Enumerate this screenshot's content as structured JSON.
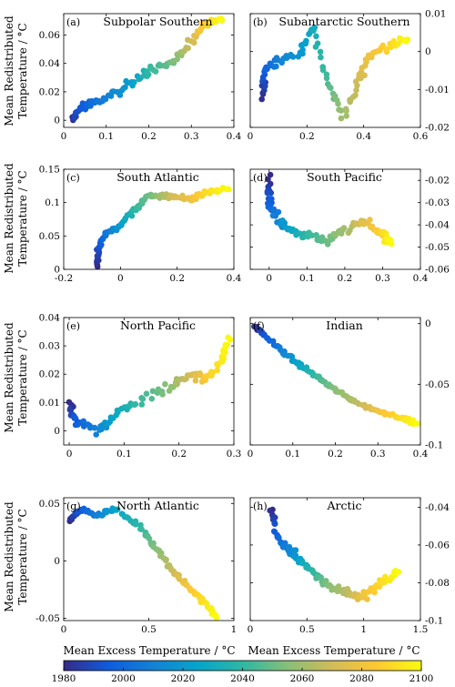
{
  "figure": {
    "ylabel_line1": "Mean Redistributed",
    "ylabel_line2": "Temperature / °C",
    "xlabel": "Mean Excess Temperature / °C",
    "colorbar": {
      "ticks": [
        1980,
        2000,
        2020,
        2040,
        2060,
        2080,
        2100
      ],
      "labels": [
        "1980",
        "2000",
        "2020",
        "2040",
        "2060",
        "2080",
        "2100"
      ],
      "colormap": "parula",
      "colors": [
        "#352a87",
        "#0f5cdd",
        "#1481d6",
        "#06a4ca",
        "#2eb7a4",
        "#87bf77",
        "#d1bb59",
        "#fec832",
        "#f9fb0e"
      ]
    }
  },
  "chart_data": [
    {
      "type": "scatter",
      "letter": "(a)",
      "title": "Subpolar Southern",
      "xlim": [
        0,
        0.4
      ],
      "ylim": [
        -0.005,
        0.075
      ],
      "yaxis": "left",
      "xticks": [
        0,
        0.1,
        0.2,
        0.3,
        0.4
      ],
      "xtick_labels": [
        "0",
        "0.1",
        "0.2",
        "0.3",
        "0.4"
      ],
      "yticks": [
        0,
        0.02,
        0.04,
        0.06
      ],
      "ytick_labels": [
        "0",
        "0.02",
        "0.04",
        "0.06"
      ],
      "anchors": [
        [
          0.02,
          0.0,
          1980
        ],
        [
          0.03,
          0.005,
          1990
        ],
        [
          0.06,
          0.012,
          2000
        ],
        [
          0.1,
          0.015,
          2010
        ],
        [
          0.15,
          0.025,
          2020
        ],
        [
          0.2,
          0.035,
          2040
        ],
        [
          0.25,
          0.04,
          2050
        ],
        [
          0.3,
          0.055,
          2070
        ],
        [
          0.33,
          0.065,
          2085
        ],
        [
          0.37,
          0.072,
          2100
        ]
      ],
      "noise": [
        0.008,
        0.004
      ]
    },
    {
      "type": "scatter",
      "letter": "(b)",
      "title": "Subantarctic Southern",
      "xlim": [
        0,
        0.6
      ],
      "ylim": [
        -0.02,
        0.01
      ],
      "yaxis": "right",
      "xticks": [
        0,
        0.2,
        0.4,
        0.6
      ],
      "xtick_labels": [
        "0",
        "0.2",
        "0.4",
        "0.6"
      ],
      "yticks": [
        -0.02,
        -0.01,
        0,
        0.01
      ],
      "ytick_labels": [
        "-0.02",
        "-0.01",
        "0",
        "0.01"
      ],
      "anchors": [
        [
          0.04,
          -0.012,
          1980
        ],
        [
          0.05,
          -0.005,
          1995
        ],
        [
          0.1,
          -0.002,
          2010
        ],
        [
          0.18,
          0.0,
          2020
        ],
        [
          0.22,
          0.007,
          2030
        ],
        [
          0.27,
          -0.008,
          2045
        ],
        [
          0.33,
          -0.017,
          2060
        ],
        [
          0.38,
          -0.008,
          2070
        ],
        [
          0.42,
          -0.001,
          2080
        ],
        [
          0.5,
          0.002,
          2090
        ],
        [
          0.55,
          0.003,
          2100
        ]
      ],
      "noise": [
        0.012,
        0.0015
      ]
    },
    {
      "type": "scatter",
      "letter": "(c)",
      "title": "South Atlantic",
      "xlim": [
        -0.2,
        0.4
      ],
      "ylim": [
        0,
        0.15
      ],
      "yaxis": "left",
      "xticks": [
        -0.2,
        0,
        0.2,
        0.4
      ],
      "xtick_labels": [
        "-0.2",
        "0",
        "0.2",
        "0.4"
      ],
      "yticks": [
        0,
        0.05,
        0.1,
        0.15
      ],
      "ytick_labels": [
        "0",
        "0.05",
        "0.1",
        "0.15"
      ],
      "anchors": [
        [
          -0.08,
          0.005,
          1980
        ],
        [
          -0.08,
          0.03,
          1990
        ],
        [
          -0.05,
          0.055,
          2005
        ],
        [
          0.0,
          0.065,
          2020
        ],
        [
          0.05,
          0.09,
          2040
        ],
        [
          0.1,
          0.11,
          2050
        ],
        [
          0.18,
          0.11,
          2070
        ],
        [
          0.25,
          0.105,
          2080
        ],
        [
          0.3,
          0.115,
          2090
        ],
        [
          0.38,
          0.12,
          2100
        ]
      ],
      "noise": [
        0.008,
        0.005
      ]
    },
    {
      "type": "scatter",
      "letter": "(d)",
      "title": "South Pacific",
      "xlim": [
        -0.05,
        0.4
      ],
      "ylim": [
        -0.06,
        -0.015
      ],
      "yaxis": "right",
      "xticks": [
        0,
        0.1,
        0.2,
        0.3,
        0.4
      ],
      "xtick_labels": [
        "0",
        "0.1",
        "0.2",
        "0.3",
        "0.4"
      ],
      "yticks": [
        -0.06,
        -0.05,
        -0.04,
        -0.03,
        -0.02
      ],
      "ytick_labels": [
        "-0.06",
        "-0.05",
        "-0.04",
        "-0.03",
        "-0.02"
      ],
      "anchors": [
        [
          0.0,
          -0.018,
          1980
        ],
        [
          0.0,
          -0.03,
          1995
        ],
        [
          0.02,
          -0.037,
          2010
        ],
        [
          0.05,
          -0.042,
          2025
        ],
        [
          0.1,
          -0.045,
          2040
        ],
        [
          0.15,
          -0.047,
          2050
        ],
        [
          0.2,
          -0.043,
          2060
        ],
        [
          0.25,
          -0.038,
          2075
        ],
        [
          0.3,
          -0.045,
          2090
        ],
        [
          0.32,
          -0.048,
          2100
        ]
      ],
      "noise": [
        0.012,
        0.003
      ]
    },
    {
      "type": "scatter",
      "letter": "(e)",
      "title": "North Pacific",
      "xlim": [
        -0.01,
        0.3
      ],
      "ylim": [
        -0.005,
        0.04
      ],
      "yaxis": "left",
      "xticks": [
        0,
        0.1,
        0.2,
        0.3
      ],
      "xtick_labels": [
        "0",
        "0.1",
        "0.2",
        "0.3"
      ],
      "yticks": [
        0,
        0.01,
        0.02,
        0.03,
        0.04
      ],
      "ytick_labels": [
        "0",
        "0.01",
        "0.02",
        "0.03",
        "0.04"
      ],
      "anchors": [
        [
          0.0,
          0.01,
          1980
        ],
        [
          0.01,
          0.003,
          1995
        ],
        [
          0.05,
          0.0,
          2010
        ],
        [
          0.08,
          0.005,
          2025
        ],
        [
          0.12,
          0.01,
          2040
        ],
        [
          0.18,
          0.015,
          2055
        ],
        [
          0.22,
          0.02,
          2070
        ],
        [
          0.25,
          0.018,
          2085
        ],
        [
          0.28,
          0.025,
          2095
        ],
        [
          0.29,
          0.032,
          2100
        ]
      ],
      "noise": [
        0.008,
        0.0025
      ]
    },
    {
      "type": "scatter",
      "letter": "(f)",
      "title": "Indian",
      "xlim": [
        0,
        0.4
      ],
      "ylim": [
        -0.1,
        0.005
      ],
      "yaxis": "right",
      "xticks": [
        0,
        0.1,
        0.2,
        0.3,
        0.4
      ],
      "xtick_labels": [
        "0",
        "0.1",
        "0.2",
        "0.3",
        "0.4"
      ],
      "yticks": [
        -0.1,
        -0.05,
        0
      ],
      "ytick_labels": [
        "-0.1",
        "-0.05",
        "0"
      ],
      "anchors": [
        [
          0.01,
          -0.002,
          1980
        ],
        [
          0.05,
          -0.015,
          2000
        ],
        [
          0.1,
          -0.03,
          2020
        ],
        [
          0.15,
          -0.042,
          2040
        ],
        [
          0.2,
          -0.055,
          2055
        ],
        [
          0.25,
          -0.065,
          2065
        ],
        [
          0.3,
          -0.072,
          2080
        ],
        [
          0.35,
          -0.077,
          2090
        ],
        [
          0.39,
          -0.082,
          2100
        ]
      ],
      "noise": [
        0.006,
        0.002
      ]
    },
    {
      "type": "scatter",
      "letter": "(g)",
      "title": "North Atlantic",
      "xlim": [
        0,
        1
      ],
      "ylim": [
        -0.052,
        0.055
      ],
      "yaxis": "left",
      "xticks": [
        0,
        0.5,
        1
      ],
      "xtick_labels": [
        "0",
        "0.5",
        "1"
      ],
      "yticks": [
        -0.05,
        0,
        0.05
      ],
      "ytick_labels": [
        "-0.05",
        "0",
        "0.05"
      ],
      "anchors": [
        [
          0.03,
          0.035,
          1980
        ],
        [
          0.1,
          0.045,
          1995
        ],
        [
          0.2,
          0.04,
          2010
        ],
        [
          0.3,
          0.045,
          2025
        ],
        [
          0.45,
          0.03,
          2040
        ],
        [
          0.55,
          0.01,
          2055
        ],
        [
          0.65,
          -0.01,
          2070
        ],
        [
          0.75,
          -0.025,
          2085
        ],
        [
          0.85,
          -0.04,
          2095
        ],
        [
          0.9,
          -0.05,
          2100
        ]
      ],
      "noise": [
        0.015,
        0.003
      ]
    },
    {
      "type": "scatter",
      "letter": "(h)",
      "title": "Arctic",
      "xlim": [
        0,
        1.5
      ],
      "ylim": [
        -0.1,
        -0.035
      ],
      "yaxis": "right",
      "xticks": [
        0,
        0.5,
        1,
        1.5
      ],
      "xtick_labels": [
        "0",
        "0.5",
        "1",
        "1.5"
      ],
      "yticks": [
        -0.1,
        -0.08,
        -0.06,
        -0.04
      ],
      "ytick_labels": [
        "-0.1",
        "-0.08",
        "-0.06",
        "-0.04"
      ],
      "anchors": [
        [
          0.18,
          -0.04,
          1980
        ],
        [
          0.25,
          -0.058,
          2000
        ],
        [
          0.4,
          -0.065,
          2020
        ],
        [
          0.55,
          -0.075,
          2040
        ],
        [
          0.7,
          -0.082,
          2055
        ],
        [
          0.85,
          -0.085,
          2065
        ],
        [
          1.0,
          -0.088,
          2080
        ],
        [
          1.15,
          -0.08,
          2090
        ],
        [
          1.3,
          -0.075,
          2100
        ]
      ],
      "noise": [
        0.03,
        0.003
      ]
    }
  ]
}
